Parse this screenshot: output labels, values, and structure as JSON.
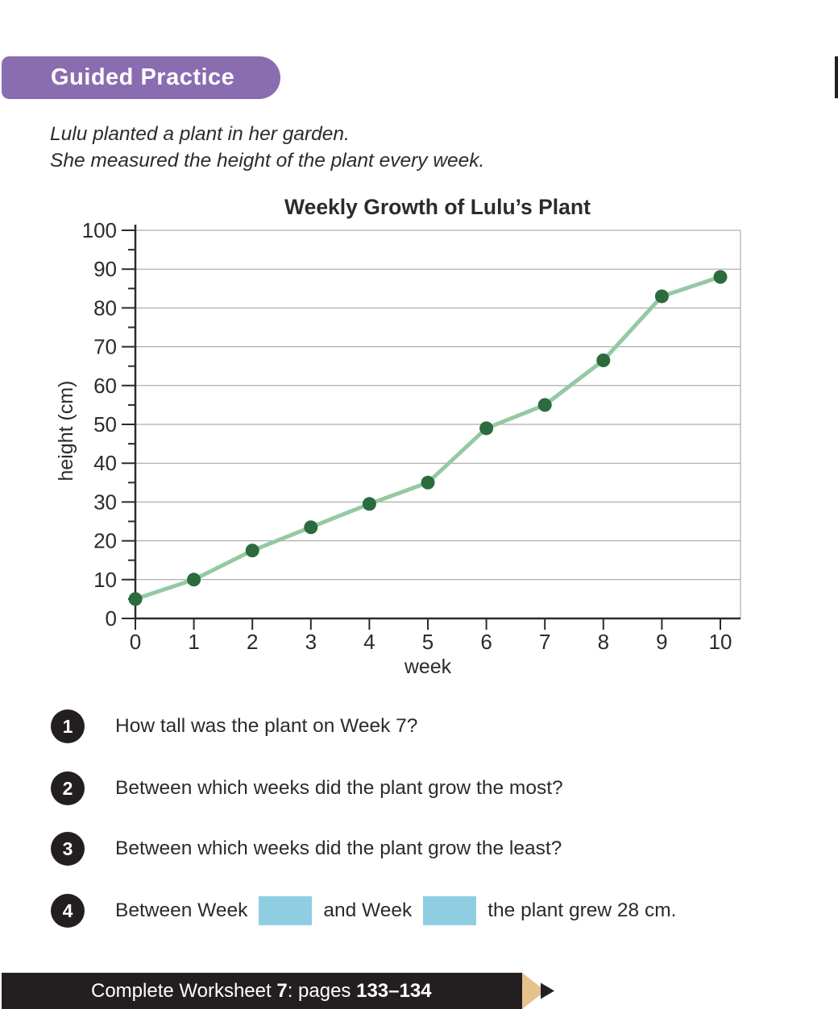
{
  "page": {
    "background": "#FFFFFF"
  },
  "colors": {
    "badge_purple": "#8A6CB0",
    "ink_black": "#231F20",
    "text_dark": "#2B2B2B",
    "answer_box_blue": "#8FCEE2",
    "pencil_tan": "#E5C28D",
    "line_green": "#94C9A2",
    "point_green": "#2B6B3E",
    "grid_gray": "#9B9B9B"
  },
  "header": {
    "badge_label": "Guided Practice"
  },
  "intro": {
    "line1": "Lulu planted a plant in her garden.",
    "line2": "She measured the height of the plant every week."
  },
  "chart_data": {
    "type": "line",
    "title": "Weekly Growth of Lulu’s Plant",
    "xlabel": "week",
    "ylabel": "height (cm)",
    "x": [
      0,
      1,
      2,
      3,
      4,
      5,
      6,
      7,
      8,
      9,
      10
    ],
    "series": [
      {
        "name": "plant height (cm)",
        "values": [
          5,
          10,
          17.5,
          23.5,
          29.5,
          35,
          49,
          55,
          66.5,
          83,
          88
        ]
      }
    ],
    "xlim": [
      0,
      10
    ],
    "ylim": [
      0,
      100
    ],
    "y_major_step": 10,
    "y_minor_step": 5,
    "grid": "horizontal-major-gridlines",
    "legend": "none"
  },
  "questions": [
    {
      "number": "1",
      "text": "How tall was the plant on Week 7?"
    },
    {
      "number": "2",
      "text": "Between which weeks did the plant grow the most?"
    },
    {
      "number": "3",
      "text": "Between which weeks did the plant grow the least?"
    },
    {
      "number": "4",
      "text_before": "Between Week",
      "text_middle": "and Week",
      "text_after": "the plant grew 28 cm."
    }
  ],
  "footer": {
    "prefix": "Complete Worksheet ",
    "worksheet_number": "7",
    "middle": ": pages ",
    "pages": "133–134"
  }
}
